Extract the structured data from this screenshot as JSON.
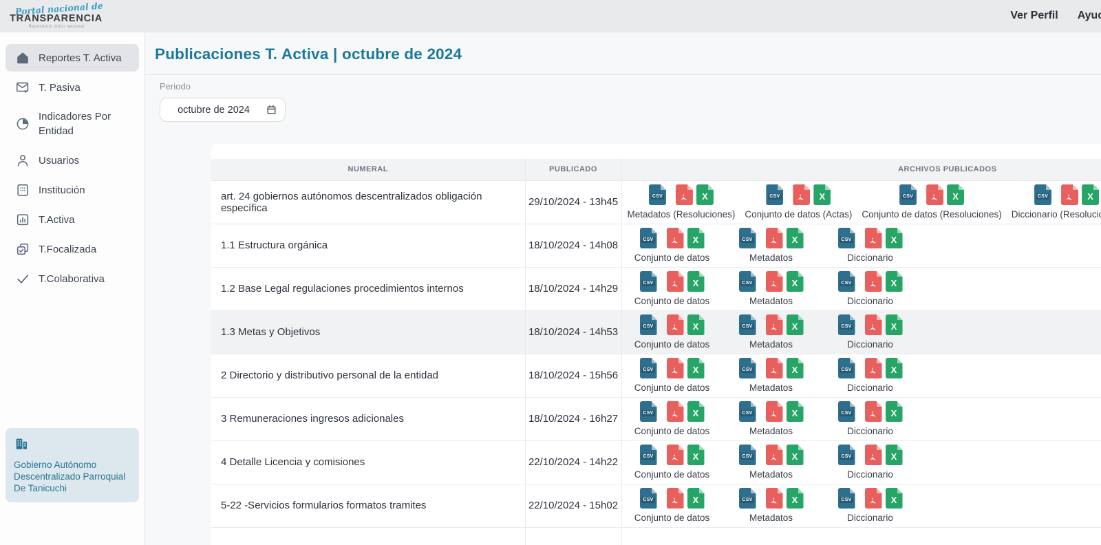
{
  "logo": {
    "line1": "Portal nacional de",
    "line2": "TRANSPARENCIA",
    "tagline": "Repositorio único nacional"
  },
  "header": {
    "links": [
      {
        "label": "Ver Perfil"
      },
      {
        "label": "Ayuda"
      }
    ]
  },
  "sidebar": {
    "items": [
      {
        "label": "Reportes T. Activa",
        "icon": "home-icon",
        "selected": true
      },
      {
        "label": "T. Pasiva",
        "icon": "mail-check-icon",
        "selected": false
      },
      {
        "label": "Indicadores Por Entidad",
        "icon": "pie-chart-icon",
        "selected": false
      },
      {
        "label": "Usuarios",
        "icon": "user-icon",
        "selected": false
      },
      {
        "label": "Institución",
        "icon": "building-grid-icon",
        "selected": false
      },
      {
        "label": "T.Activa",
        "icon": "bar-chart-icon",
        "selected": false
      },
      {
        "label": "T.Focalizada",
        "icon": "copy-check-icon",
        "selected": false
      },
      {
        "label": "T.Colaborativa",
        "icon": "check-icon",
        "selected": false
      }
    ],
    "entity": {
      "name": "Gobierno Autónomo Descentralizado Parroquial De Tanicuchi"
    }
  },
  "main": {
    "title": "Publicaciones T. Activa | octubre de 2024",
    "period_label": "Periodo",
    "period_value": "octubre de 2024"
  },
  "table": {
    "columns": [
      "NUMERAL",
      "PUBLICADO",
      "ARCHIVOS PUBLICADOS"
    ],
    "file_formats": [
      "csv",
      "pdf",
      "xls"
    ],
    "rows": [
      {
        "numeral": "art. 24 gobiernos autónomos descentralizados obligación específica",
        "publicado": "29/10/2024 - 13h45",
        "highlighted": false,
        "files": [
          "Metadatos (Resoluciones)",
          "Conjunto de datos (Actas)",
          "Conjunto de datos (Resoluciones)",
          "Diccionario (Resoluciones)"
        ]
      },
      {
        "numeral": "1.1 Estructura orgánica",
        "publicado": "18/10/2024 - 14h08",
        "highlighted": false,
        "files": [
          "Conjunto de datos",
          "Metadatos",
          "Diccionario"
        ]
      },
      {
        "numeral": "1.2 Base Legal regulaciones procedimientos internos",
        "publicado": "18/10/2024 - 14h29",
        "highlighted": false,
        "files": [
          "Conjunto de datos",
          "Metadatos",
          "Diccionario"
        ]
      },
      {
        "numeral": "1.3 Metas y Objetivos",
        "publicado": "18/10/2024 - 14h53",
        "highlighted": true,
        "files": [
          "Conjunto de datos",
          "Metadatos",
          "Diccionario"
        ]
      },
      {
        "numeral": "2 Directorio y distributivo personal de la entidad",
        "publicado": "18/10/2024 - 15h56",
        "highlighted": false,
        "files": [
          "Conjunto de datos",
          "Metadatos",
          "Diccionario"
        ]
      },
      {
        "numeral": "3 Remuneraciones ingresos adicionales",
        "publicado": "18/10/2024 - 16h27",
        "highlighted": false,
        "files": [
          "Conjunto de datos",
          "Metadatos",
          "Diccionario"
        ]
      },
      {
        "numeral": "4 Detalle Licencia y comisiones",
        "publicado": "22/10/2024 - 14h22",
        "highlighted": false,
        "files": [
          "Conjunto de datos",
          "Metadatos",
          "Diccionario"
        ]
      },
      {
        "numeral": "5-22 -Servicios formularios formatos tramites",
        "publicado": "22/10/2024 - 15h02",
        "highlighted": false,
        "files": [
          "Conjunto de datos",
          "Metadatos",
          "Diccionario"
        ]
      },
      {
        "numeral": "",
        "publicado": "",
        "highlighted": false,
        "files": []
      }
    ]
  },
  "icons": {
    "csv_label": "CSV",
    "xls_letter": "X"
  },
  "colors": {
    "title_teal": "#1b7a9c",
    "csv_icon": "#2e6f8e",
    "pdf_icon": "#e8605d",
    "xls_icon": "#27a566",
    "entity_teal": "#2a7493",
    "topbar_bg": "#e8eaec",
    "selected_item_bg": "#e2e4e8",
    "entity_card_bg": "#dce8ee"
  }
}
